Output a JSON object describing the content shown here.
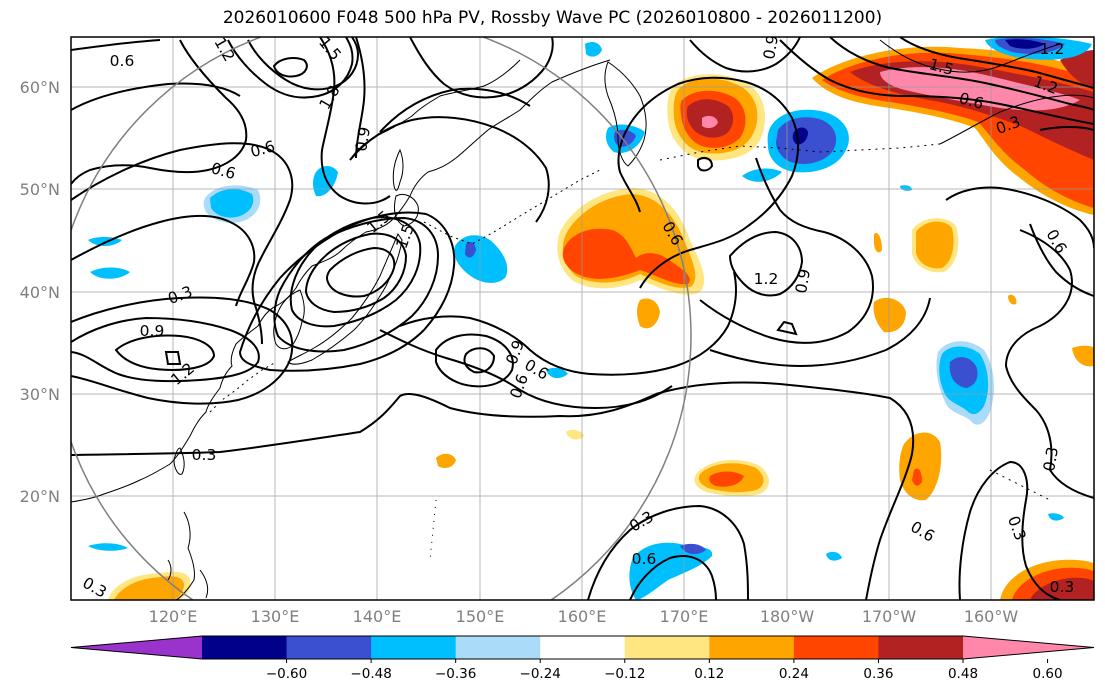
{
  "title": "2026010600 F048 500 hPa PV, Rossby Wave PC (2026010800 - 2026011200)",
  "latitude_labels": [
    "60°N",
    "50°N",
    "40°N",
    "30°N",
    "20°N"
  ],
  "longitude_labels": [
    "120°E",
    "130°E",
    "140°E",
    "150°E",
    "160°E",
    "170°E",
    "180°W",
    "170°W",
    "160°W"
  ],
  "colorbar": {
    "tick_labels": [
      "−0.60",
      "−0.48",
      "−0.36",
      "−0.24",
      "−0.12",
      "0.12",
      "0.24",
      "0.36",
      "0.48",
      "0.60"
    ],
    "colors": [
      "#9933cc",
      "#00008b",
      "#3b50d0",
      "#00bfff",
      "#aadcfa",
      "#ffffff",
      "#ffe680",
      "#ffa500",
      "#ff4500",
      "#b22222",
      "#ff88aa"
    ]
  },
  "contour_labels": [
    "0.6",
    "1.5",
    "1.8",
    "0.6",
    "0.9",
    "0.6",
    "1.2",
    "1.5",
    "1.5",
    "0.3",
    "0.9",
    "1.2",
    "0.3",
    "0.6",
    "0.6",
    "0.9",
    "0.6",
    "0.9",
    "1.2",
    "0.9",
    "1.2",
    "1.5",
    "1.2",
    "0.6",
    "0.3",
    "0.6",
    "0.3",
    "0.3",
    "0.6",
    "0.3",
    "0.6",
    "0.3",
    "0.3"
  ]
}
